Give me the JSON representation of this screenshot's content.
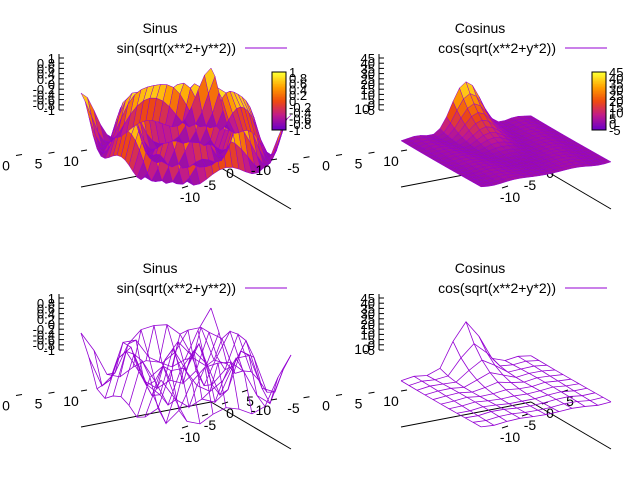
{
  "colors": {
    "line": "#9400d3",
    "palette": [
      "#000000",
      "#6a00c8",
      "#c01a8c",
      "#ee4a10",
      "#ffa000",
      "#ffff30"
    ]
  },
  "chart_data": [
    {
      "type": "surface3d",
      "style": "pm3d-surface",
      "title": "Sinus",
      "key_label": "sin(sqrt(x**2+y**2))",
      "function": "sin(sqrt(x**2+y**2))",
      "x_ticks": [
        "-10",
        "-5",
        "0",
        "5",
        "10"
      ],
      "y_ticks": [
        "-10",
        "-5",
        "0",
        "5",
        "10"
      ],
      "z_ticks": [
        "-1",
        "-0.8",
        "-0.6",
        "-0.4",
        "-0.2",
        "0",
        "0.2",
        "0.4",
        "0.6",
        "0.8",
        "1"
      ],
      "colorbox_ticks": [
        "-1",
        "-0.8",
        "-0.6",
        "-0.4",
        "-0.2",
        "0",
        "0.2",
        "0.4",
        "0.6",
        "0.8",
        "1"
      ],
      "xlim": [
        -10,
        10
      ],
      "ylim": [
        -10,
        10
      ],
      "zlim": [
        -1,
        1
      ],
      "colorbox": true,
      "legend": "top-right"
    },
    {
      "type": "surface3d",
      "style": "pm3d-surface",
      "title": "Cosinus",
      "key_label": "cos(sqrt(x**2+y*2))",
      "function": "cos(sqrt(x**2+y*2))",
      "x_ticks": [
        "-10",
        "-5",
        "0",
        "5",
        "10"
      ],
      "y_ticks": [
        "-10",
        "-5",
        "0",
        "5",
        "10"
      ],
      "z_ticks": [
        "-5",
        "0",
        "5",
        "10",
        "15",
        "20",
        "25",
        "30",
        "35",
        "40",
        "45"
      ],
      "colorbox_ticks": [
        "-5",
        "0",
        "5",
        "10",
        "15",
        "20",
        "25",
        "30",
        "35",
        "40",
        "45"
      ],
      "xlim": [
        -10,
        10
      ],
      "ylim": [
        -10,
        10
      ],
      "zlim": [
        -5,
        45
      ],
      "colorbox": true,
      "legend": "top-right"
    },
    {
      "type": "surface3d",
      "style": "wireframe",
      "title": "Sinus",
      "key_label": "sin(sqrt(x**2+y**2))",
      "function": "sin(sqrt(x**2+y**2))",
      "x_ticks": [
        "-10",
        "-5",
        "0",
        "5",
        "10"
      ],
      "y_ticks": [
        "-10",
        "-5",
        "0",
        "5",
        "10"
      ],
      "z_ticks": [
        "-1",
        "-0.8",
        "-0.6",
        "-0.4",
        "-0.2",
        "0",
        "0.2",
        "0.4",
        "0.6",
        "0.8",
        "1"
      ],
      "xlim": [
        -10,
        10
      ],
      "ylim": [
        -10,
        10
      ],
      "zlim": [
        -1,
        1
      ],
      "colorbox": false,
      "legend": "top-right"
    },
    {
      "type": "surface3d",
      "style": "wireframe",
      "title": "Cosinus",
      "key_label": "cos(sqrt(x**2+y*2))",
      "function": "cos(sqrt(x**2+y*2))",
      "x_ticks": [
        "-10",
        "-5",
        "0",
        "5",
        "10"
      ],
      "y_ticks": [
        "-10",
        "-5",
        "0",
        "5",
        "10"
      ],
      "z_ticks": [
        "-5",
        "0",
        "5",
        "10",
        "15",
        "20",
        "25",
        "30",
        "35",
        "40",
        "45"
      ],
      "xlim": [
        -10,
        10
      ],
      "ylim": [
        -10,
        10
      ],
      "zlim": [
        -5,
        45
      ],
      "colorbox": false,
      "legend": "top-right"
    }
  ]
}
